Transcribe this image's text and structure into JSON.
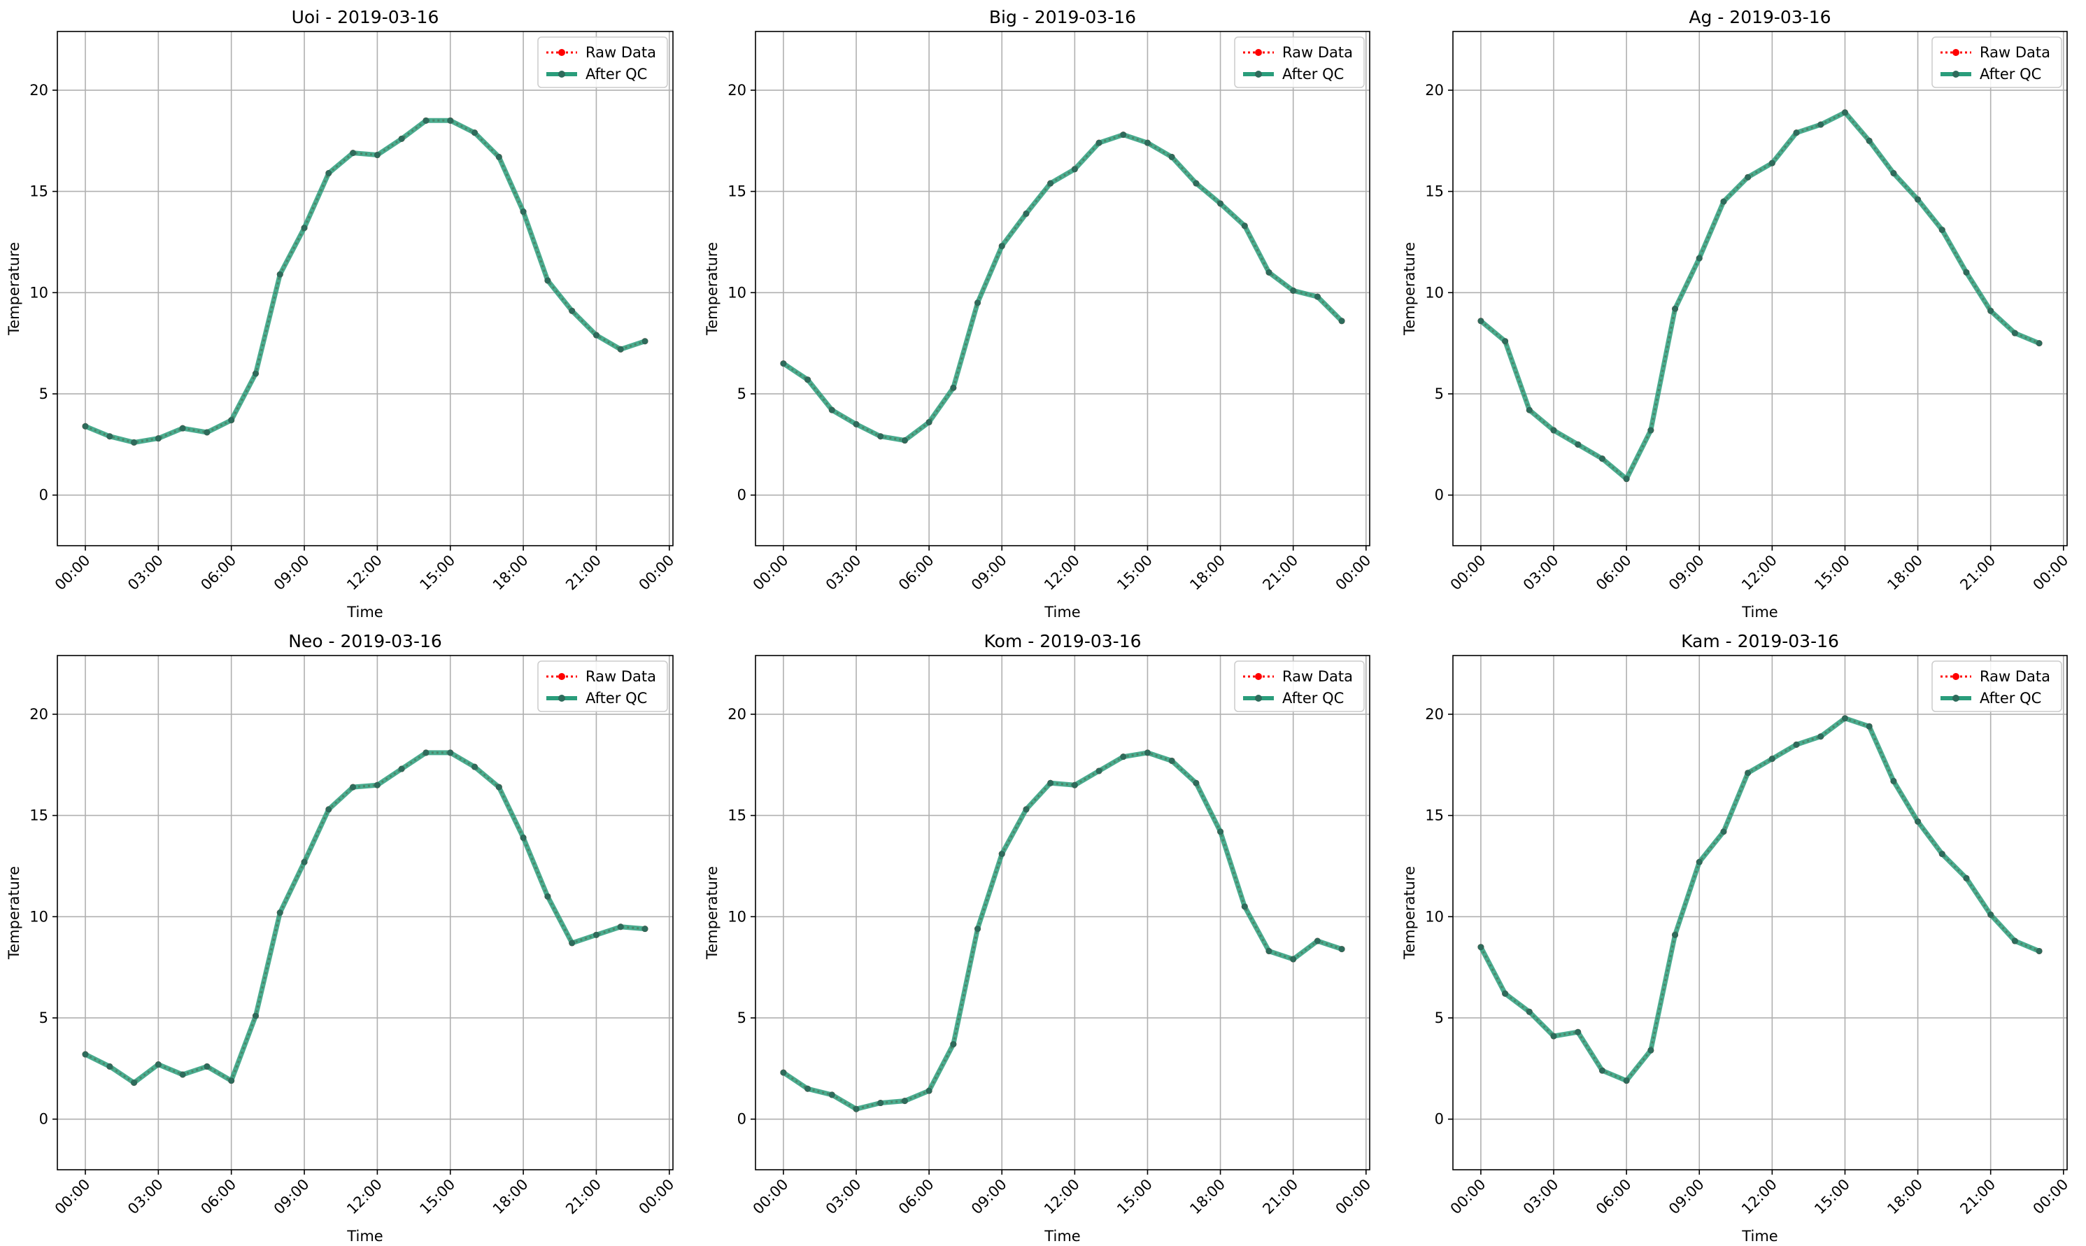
{
  "colors": {
    "raw": "#ff0000",
    "qc": "#2a9d7b",
    "qc_marker": "#2e6b5b",
    "grid": "#b0b0b0",
    "axes": "#000000"
  },
  "legend": {
    "raw_label": "Raw Data",
    "qc_label": "After QC",
    "placement": "top-right"
  },
  "chart_data": [
    {
      "type": "line",
      "title": "Uoi - 2019-03-16",
      "xlabel": "Time",
      "ylabel": "Temperature",
      "x_ticks": [
        "00:00",
        "03:00",
        "06:00",
        "09:00",
        "12:00",
        "15:00",
        "18:00",
        "21:00",
        "00:00"
      ],
      "y_ticks": [
        "0",
        "5",
        "10",
        "15",
        "20"
      ],
      "xlim_hours": [
        -1.15,
        24.15
      ],
      "ylim": [
        -2.5,
        22.9
      ],
      "grid": true,
      "x_hours": [
        0,
        1,
        2,
        3,
        4,
        5,
        6,
        7,
        8,
        9,
        10,
        11,
        12,
        13,
        14,
        15,
        16,
        17,
        18,
        19,
        20,
        21,
        22,
        23
      ],
      "series": [
        {
          "name": "Raw Data",
          "values": [
            3.4,
            2.9,
            2.6,
            2.8,
            3.3,
            3.1,
            3.7,
            6.0,
            10.9,
            13.2,
            15.9,
            16.9,
            16.8,
            17.6,
            18.5,
            18.5,
            17.9,
            16.7,
            14.0,
            10.6,
            9.1,
            7.9,
            7.2,
            7.6
          ]
        },
        {
          "name": "After QC",
          "values": [
            3.4,
            2.9,
            2.6,
            2.8,
            3.3,
            3.1,
            3.7,
            6.0,
            10.9,
            13.2,
            15.9,
            16.9,
            16.8,
            17.6,
            18.5,
            18.5,
            17.9,
            16.7,
            14.0,
            10.6,
            9.1,
            7.9,
            7.2,
            7.6
          ]
        }
      ]
    },
    {
      "type": "line",
      "title": "Big - 2019-03-16",
      "xlabel": "Time",
      "ylabel": "Temperature",
      "x_ticks": [
        "00:00",
        "03:00",
        "06:00",
        "09:00",
        "12:00",
        "15:00",
        "18:00",
        "21:00",
        "00:00"
      ],
      "y_ticks": [
        "0",
        "5",
        "10",
        "15",
        "20"
      ],
      "xlim_hours": [
        -1.15,
        24.15
      ],
      "ylim": [
        -2.5,
        22.9
      ],
      "grid": true,
      "x_hours": [
        0,
        1,
        2,
        3,
        4,
        5,
        6,
        7,
        8,
        9,
        10,
        11,
        12,
        13,
        14,
        15,
        16,
        17,
        18,
        19,
        20,
        21,
        22,
        23
      ],
      "series": [
        {
          "name": "Raw Data",
          "values": [
            6.5,
            5.7,
            4.2,
            3.5,
            2.9,
            2.7,
            3.6,
            5.3,
            9.5,
            12.3,
            13.9,
            15.4,
            16.1,
            17.4,
            17.8,
            17.4,
            16.7,
            15.4,
            14.4,
            13.3,
            11.0,
            10.1,
            9.8,
            8.6
          ]
        },
        {
          "name": "After QC",
          "values": [
            6.5,
            5.7,
            4.2,
            3.5,
            2.9,
            2.7,
            3.6,
            5.3,
            9.5,
            12.3,
            13.9,
            15.4,
            16.1,
            17.4,
            17.8,
            17.4,
            16.7,
            15.4,
            14.4,
            13.3,
            11.0,
            10.1,
            9.8,
            8.6
          ]
        }
      ]
    },
    {
      "type": "line",
      "title": "Ag - 2019-03-16",
      "xlabel": "Time",
      "ylabel": "Temperature",
      "x_ticks": [
        "00:00",
        "03:00",
        "06:00",
        "09:00",
        "12:00",
        "15:00",
        "18:00",
        "21:00",
        "00:00"
      ],
      "y_ticks": [
        "0",
        "5",
        "10",
        "15",
        "20"
      ],
      "xlim_hours": [
        -1.15,
        24.15
      ],
      "ylim": [
        -2.5,
        22.9
      ],
      "grid": true,
      "x_hours": [
        0,
        1,
        2,
        3,
        4,
        5,
        6,
        7,
        8,
        9,
        10,
        11,
        12,
        13,
        14,
        15,
        16,
        17,
        18,
        19,
        20,
        21,
        22,
        23
      ],
      "series": [
        {
          "name": "Raw Data",
          "values": [
            8.6,
            7.6,
            4.2,
            3.2,
            2.5,
            1.8,
            0.8,
            3.2,
            9.2,
            11.7,
            14.5,
            15.7,
            16.4,
            17.9,
            18.3,
            18.9,
            17.5,
            15.9,
            14.6,
            13.1,
            11.0,
            9.1,
            8.0,
            7.5
          ]
        },
        {
          "name": "After QC",
          "values": [
            8.6,
            7.6,
            4.2,
            3.2,
            2.5,
            1.8,
            0.8,
            3.2,
            9.2,
            11.7,
            14.5,
            15.7,
            16.4,
            17.9,
            18.3,
            18.9,
            17.5,
            15.9,
            14.6,
            13.1,
            11.0,
            9.1,
            8.0,
            7.5
          ]
        }
      ]
    },
    {
      "type": "line",
      "title": "Neo - 2019-03-16",
      "xlabel": "Time",
      "ylabel": "Temperature",
      "x_ticks": [
        "00:00",
        "03:00",
        "06:00",
        "09:00",
        "12:00",
        "15:00",
        "18:00",
        "21:00",
        "00:00"
      ],
      "y_ticks": [
        "0",
        "5",
        "10",
        "15",
        "20"
      ],
      "xlim_hours": [
        -1.15,
        24.15
      ],
      "ylim": [
        -2.5,
        22.9
      ],
      "grid": true,
      "x_hours": [
        0,
        1,
        2,
        3,
        4,
        5,
        6,
        7,
        8,
        9,
        10,
        11,
        12,
        13,
        14,
        15,
        16,
        17,
        18,
        19,
        20,
        21,
        22,
        23
      ],
      "series": [
        {
          "name": "Raw Data",
          "values": [
            3.2,
            2.6,
            1.8,
            2.7,
            2.2,
            2.6,
            1.9,
            5.1,
            10.2,
            12.7,
            15.3,
            16.4,
            16.5,
            17.3,
            18.1,
            18.1,
            17.4,
            16.4,
            13.9,
            11.0,
            8.7,
            9.1,
            9.5,
            9.4
          ]
        },
        {
          "name": "After QC",
          "values": [
            3.2,
            2.6,
            1.8,
            2.7,
            2.2,
            2.6,
            1.9,
            5.1,
            10.2,
            12.7,
            15.3,
            16.4,
            16.5,
            17.3,
            18.1,
            18.1,
            17.4,
            16.4,
            13.9,
            11.0,
            8.7,
            9.1,
            9.5,
            9.4
          ]
        }
      ]
    },
    {
      "type": "line",
      "title": "Kom - 2019-03-16",
      "xlabel": "Time",
      "ylabel": "Temperature",
      "x_ticks": [
        "00:00",
        "03:00",
        "06:00",
        "09:00",
        "12:00",
        "15:00",
        "18:00",
        "21:00",
        "00:00"
      ],
      "y_ticks": [
        "0",
        "5",
        "10",
        "15",
        "20"
      ],
      "xlim_hours": [
        -1.15,
        24.15
      ],
      "ylim": [
        -2.5,
        22.9
      ],
      "grid": true,
      "x_hours": [
        0,
        1,
        2,
        3,
        4,
        5,
        6,
        7,
        8,
        9,
        10,
        11,
        12,
        13,
        14,
        15,
        16,
        17,
        18,
        19,
        20,
        21,
        22,
        23
      ],
      "series": [
        {
          "name": "Raw Data",
          "values": [
            2.3,
            1.5,
            1.2,
            0.5,
            0.8,
            0.9,
            1.4,
            3.7,
            9.4,
            13.1,
            15.3,
            16.6,
            16.5,
            17.2,
            17.9,
            18.1,
            17.7,
            16.6,
            14.2,
            10.5,
            8.3,
            7.9,
            8.8,
            8.4
          ]
        },
        {
          "name": "After QC",
          "values": [
            2.3,
            1.5,
            1.2,
            0.5,
            0.8,
            0.9,
            1.4,
            3.7,
            9.4,
            13.1,
            15.3,
            16.6,
            16.5,
            17.2,
            17.9,
            18.1,
            17.7,
            16.6,
            14.2,
            10.5,
            8.3,
            7.9,
            8.8,
            8.4
          ]
        }
      ]
    },
    {
      "type": "line",
      "title": "Kam - 2019-03-16",
      "xlabel": "Time",
      "ylabel": "Temperature",
      "x_ticks": [
        "00:00",
        "03:00",
        "06:00",
        "09:00",
        "12:00",
        "15:00",
        "18:00",
        "21:00",
        "00:00"
      ],
      "y_ticks": [
        "0",
        "5",
        "10",
        "15",
        "20"
      ],
      "xlim_hours": [
        -1.15,
        24.15
      ],
      "ylim": [
        -2.5,
        22.9
      ],
      "grid": true,
      "x_hours": [
        0,
        1,
        2,
        3,
        4,
        5,
        6,
        7,
        8,
        9,
        10,
        11,
        12,
        13,
        14,
        15,
        16,
        17,
        18,
        19,
        20,
        21,
        22,
        23
      ],
      "series": [
        {
          "name": "Raw Data",
          "values": [
            8.5,
            6.2,
            5.3,
            4.1,
            4.3,
            2.4,
            1.9,
            3.4,
            9.1,
            12.7,
            14.2,
            17.1,
            17.8,
            18.5,
            18.9,
            19.8,
            19.4,
            16.7,
            14.7,
            13.1,
            11.9,
            10.1,
            8.8,
            8.3
          ]
        },
        {
          "name": "After QC",
          "values": [
            8.5,
            6.2,
            5.3,
            4.1,
            4.3,
            2.4,
            1.9,
            3.4,
            9.1,
            12.7,
            14.2,
            17.1,
            17.8,
            18.5,
            18.9,
            19.8,
            19.4,
            16.7,
            14.7,
            13.1,
            11.9,
            10.1,
            8.8,
            8.3
          ]
        }
      ]
    }
  ]
}
